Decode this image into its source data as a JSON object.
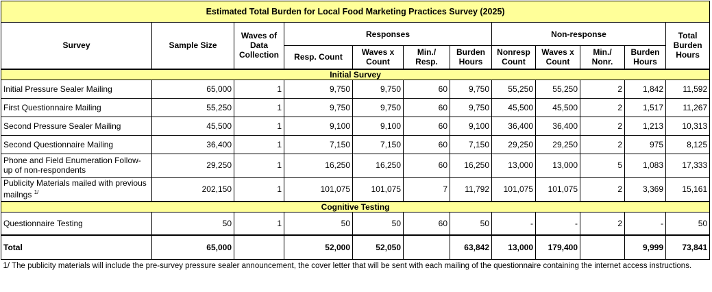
{
  "table": {
    "title": "Estimated Total Burden for Local Food Marketing Practices Survey (2025)",
    "header": {
      "survey": "Survey",
      "sample_size": "Sample Size",
      "waves": "Waves of Data Collection",
      "responses": "Responses",
      "nonresponse": "Non-response",
      "total_burden": "Total Burden Hours",
      "sub": [
        "Resp. Count",
        "Waves x Count",
        "Min./ Resp.",
        "Burden Hours",
        "Nonresp Count",
        "Waves x Count",
        "Min./ Nonr.",
        "Burden Hours"
      ]
    },
    "sections": [
      {
        "title": "Initial Survey",
        "rows": [
          {
            "survey": "Initial Pressure Sealer Mailing",
            "values": [
              "65,000",
              "1",
              "9,750",
              "9,750",
              "60",
              "9,750",
              "55,250",
              "55,250",
              "2",
              "1,842",
              "11,592"
            ]
          },
          {
            "survey": "First Questionnaire Mailing",
            "values": [
              "55,250",
              "1",
              "9,750",
              "9,750",
              "60",
              "9,750",
              "45,500",
              "45,500",
              "2",
              "1,517",
              "11,267"
            ]
          },
          {
            "survey": "Second Pressure Sealer Mailing",
            "values": [
              "45,500",
              "1",
              "9,100",
              "9,100",
              "60",
              "9,100",
              "36,400",
              "36,400",
              "2",
              "1,213",
              "10,313"
            ]
          },
          {
            "survey": "Second Questionnaire Mailing",
            "values": [
              "36,400",
              "1",
              "7,150",
              "7,150",
              "60",
              "7,150",
              "29,250",
              "29,250",
              "2",
              "975",
              "8,125"
            ]
          },
          {
            "survey": "Phone and Field Enumeration Follow-up of non-respondents",
            "values": [
              "29,250",
              "1",
              "16,250",
              "16,250",
              "60",
              "16,250",
              "13,000",
              "13,000",
              "5",
              "1,083",
              "17,333"
            ]
          },
          {
            "survey": "Publicity Materials mailed with previous mailngs",
            "note": "1/",
            "values": [
              "202,150",
              "1",
              "101,075",
              "101,075",
              "7",
              "11,792",
              "101,075",
              "101,075",
              "2",
              "3,369",
              "15,161"
            ]
          }
        ]
      },
      {
        "title": "Cognitive Testing",
        "rows": [
          {
            "survey": "Questionnaire Testing",
            "values": [
              "50",
              "1",
              "50",
              "50",
              "60",
              "50",
              "-",
              "-",
              "2",
              "-",
              "50"
            ]
          }
        ]
      }
    ],
    "total": {
      "survey": "Total",
      "values": [
        "65,000",
        null,
        "52,000",
        "52,050",
        null,
        "63,842",
        "13,000",
        "179,400",
        null,
        "9,999",
        "73,841"
      ]
    },
    "footnote": "1/ The publicity materials will include the pre-survey pressure sealer  announcement, the cover letter that will be sent with each mailing of the questionnaire containing the internet access instructions."
  }
}
